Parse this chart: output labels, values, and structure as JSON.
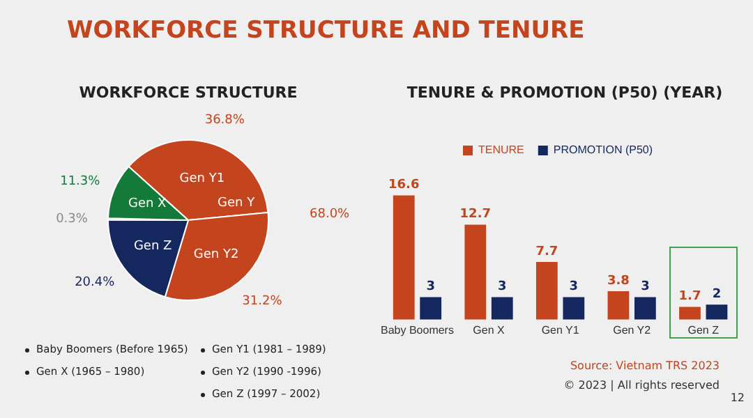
{
  "chart_data": [
    {
      "type": "pie",
      "title": "WORKFORCE STRUCTURE",
      "categories": [
        "Gen Y1",
        "Gen Y2",
        "Gen Z",
        null,
        "Gen X"
      ],
      "values": [
        36.8,
        31.2,
        20.4,
        0.3,
        11.3
      ],
      "colors": [
        "#c4441d",
        "#c4441d",
        "#14275e",
        "#8a8a8a",
        "#147a3a"
      ],
      "value_labels": [
        "36.8%",
        "31.2%",
        "20.4%",
        "0.3%",
        "11.3%"
      ],
      "legend": false,
      "annotations": [
        "WORKFORCE STRUCTURE AND TENURE",
        "Gen Y",
        "68.0%",
        "Baby Boomers (Before 1965)",
        "Gen X (1965 – 1980)",
        "Gen Y1 (1981 – 1989)",
        "Gen Y2 (1990 -1996)",
        "Gen Z (1997 – 2002)"
      ]
    },
    {
      "type": "bar",
      "title": "TENURE & PROMOTION (P50) (YEAR)",
      "categories": [
        "Baby Boomers",
        "Gen X",
        "Gen Y1",
        "Gen Y2",
        "Gen Z"
      ],
      "series": [
        {
          "name": "TENURE",
          "color": "#c4441d",
          "values": [
            16.6,
            12.7,
            7.7,
            3.8,
            1.7
          ]
        },
        {
          "name": "PROMOTION (P50)",
          "color": "#14275e",
          "values": [
            3,
            3,
            3,
            3,
            2
          ]
        }
      ],
      "data_labels": true,
      "legend": "top",
      "grid": false,
      "tick_labels": "x",
      "annotations": [
        "Source: Vietnam TRS 2023",
        "© 2023 | All rights reserved",
        "12"
      ]
    }
  ]
}
